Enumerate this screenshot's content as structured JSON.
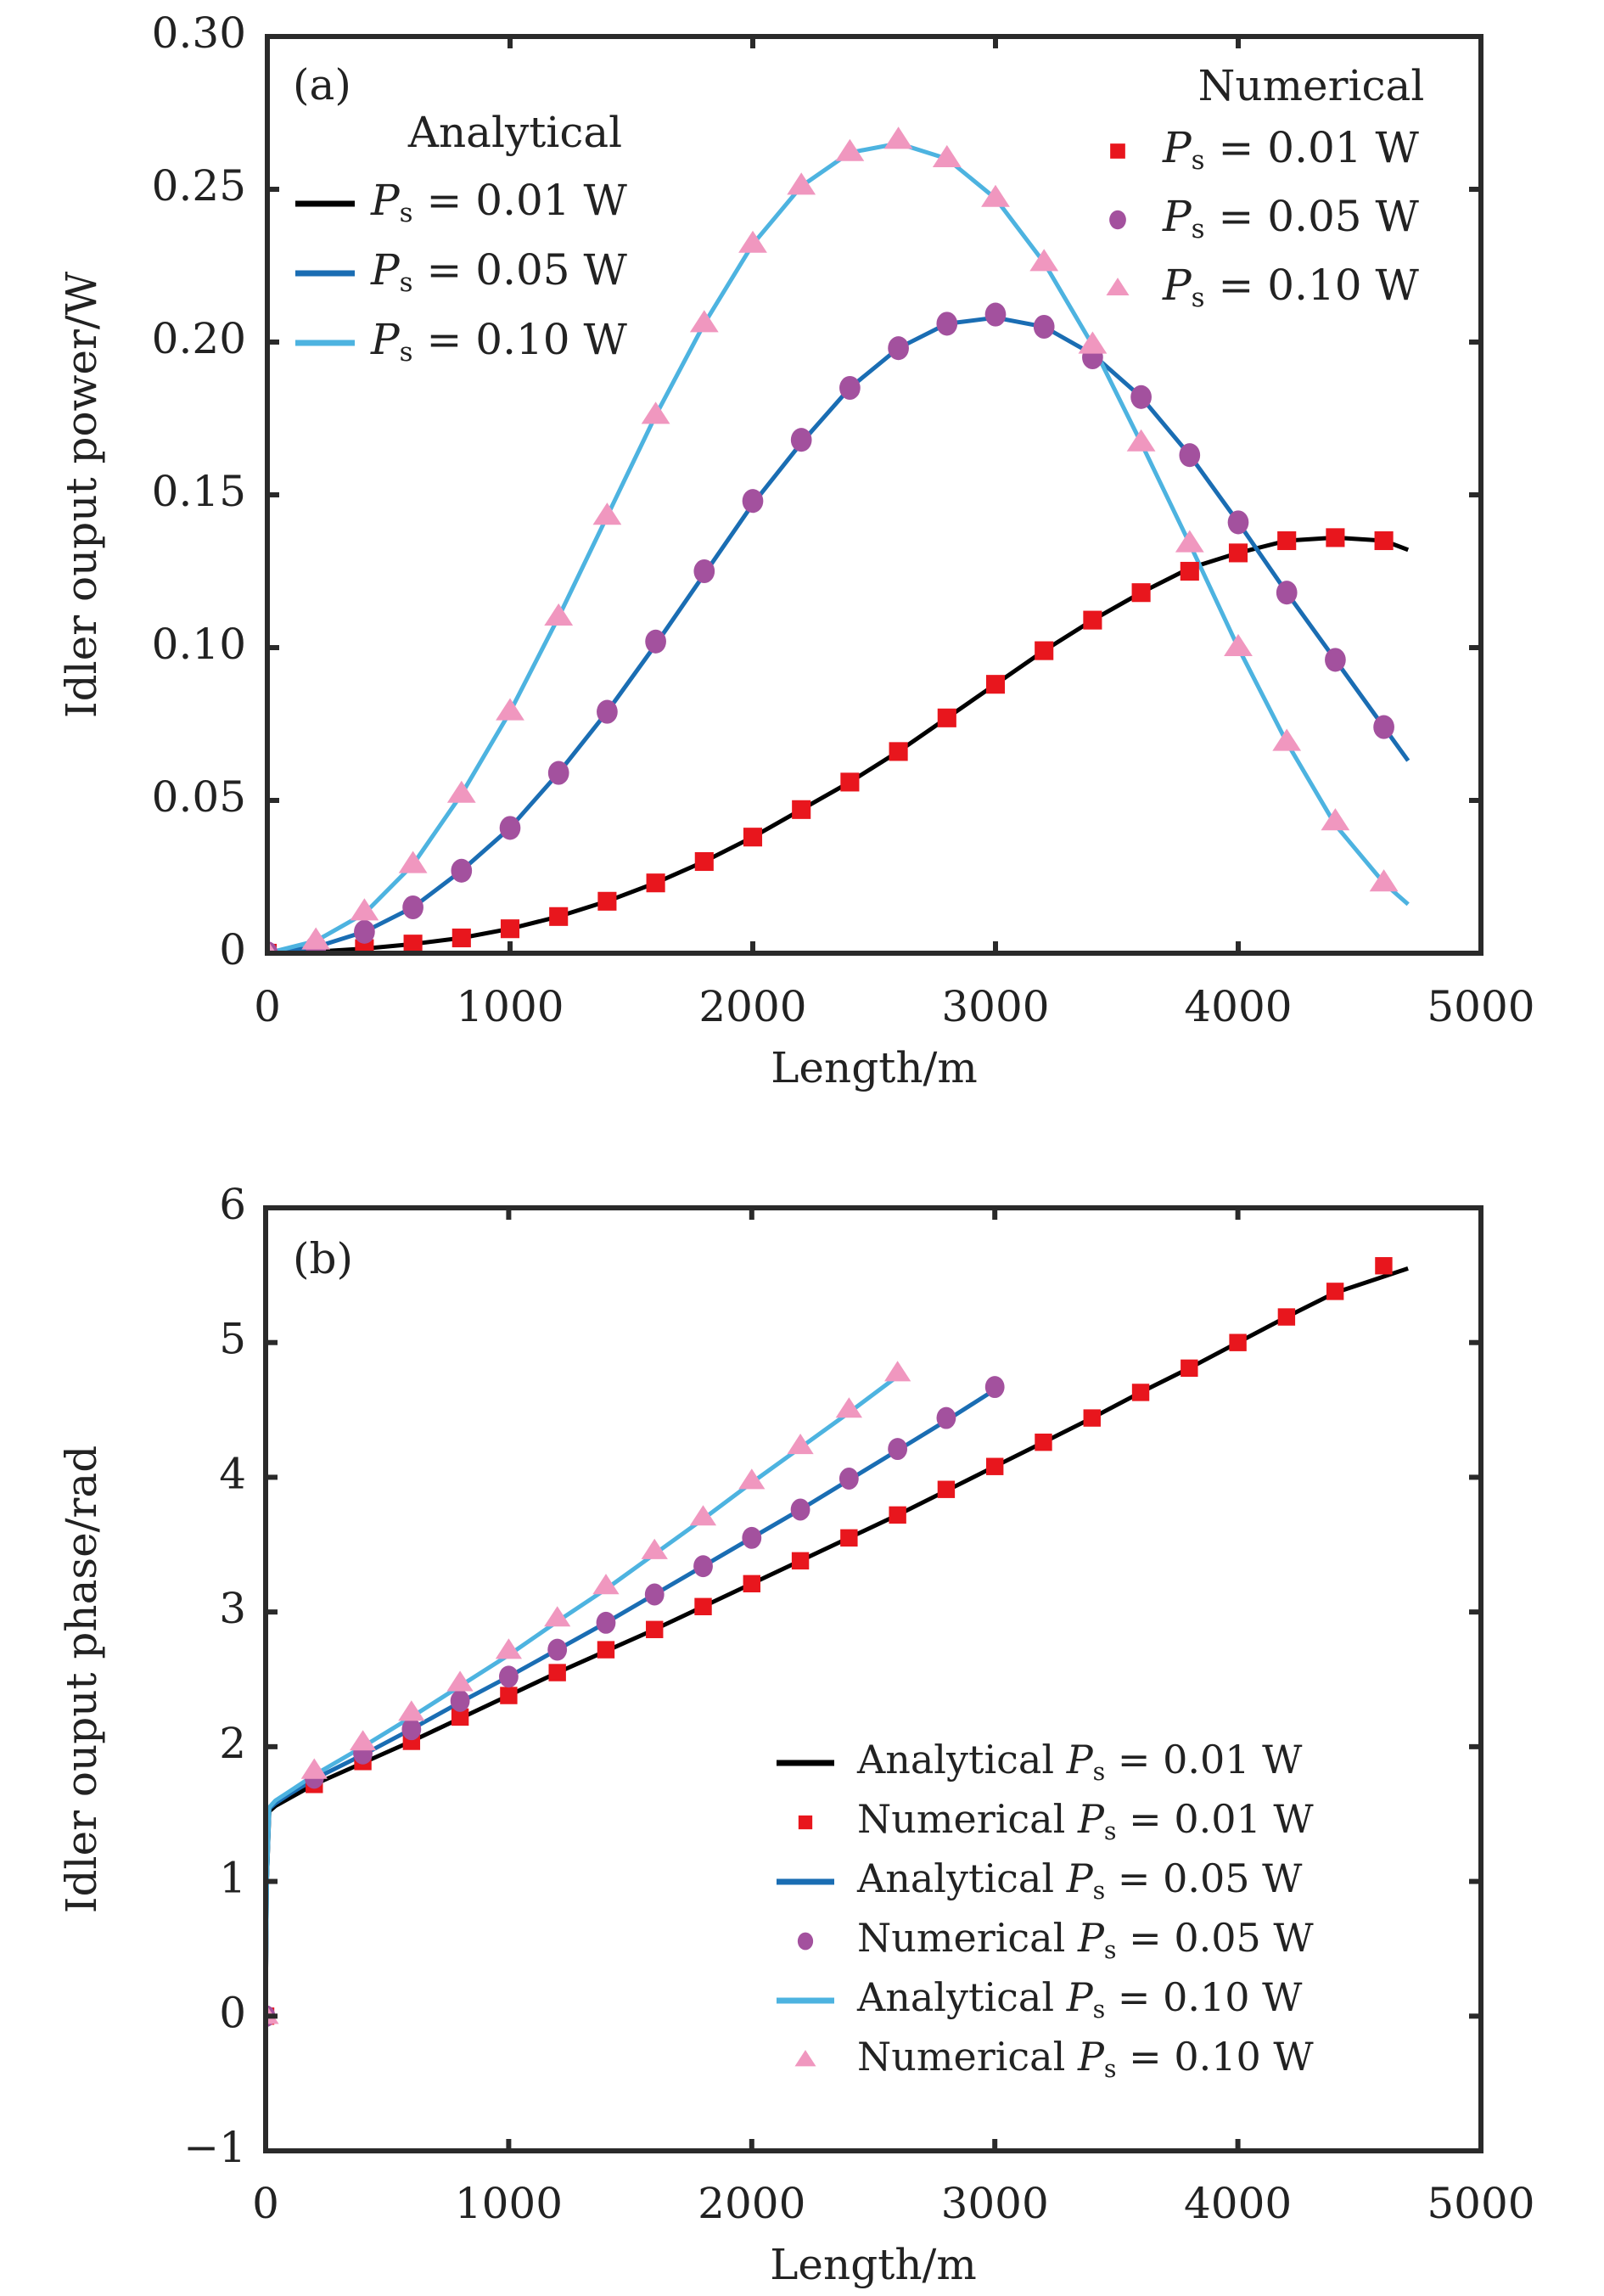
{
  "chart_data": [
    {
      "id": "a",
      "type": "line",
      "panel_label": "(a)",
      "xlabel": "Length/m",
      "ylabel": "Idler ouput power/W",
      "xlim": [
        0,
        5000
      ],
      "ylim": [
        0,
        0.3
      ],
      "xticks": [
        0,
        1000,
        2000,
        3000,
        4000,
        5000
      ],
      "xtick_labels": [
        "0",
        "1000",
        "2000",
        "3000",
        "4000",
        "5000"
      ],
      "yticks": [
        0,
        0.05,
        0.1,
        0.15,
        0.2,
        0.25,
        0.3
      ],
      "ytick_labels": [
        "0",
        "0.05",
        "0.10",
        "0.15",
        "0.20",
        "0.25",
        "0.30"
      ],
      "grid": false,
      "legends": [
        {
          "title": "Analytical",
          "placement": "top-left",
          "entries": [
            {
              "kind": "line",
              "series": "analytical_0.01",
              "prefix": "",
              "symbol": "P",
              "subscript": "s",
              "suffix": " = 0.01 W"
            },
            {
              "kind": "line",
              "series": "analytical_0.05",
              "prefix": "",
              "symbol": "P",
              "subscript": "s",
              "suffix": " = 0.05 W"
            },
            {
              "kind": "line",
              "series": "analytical_0.10",
              "prefix": "",
              "symbol": "P",
              "subscript": "s",
              "suffix": " = 0.10 W"
            }
          ]
        },
        {
          "title": "Numerical",
          "placement": "top-right",
          "entries": [
            {
              "kind": "square",
              "series": "numerical_0.01",
              "prefix": "",
              "symbol": "P",
              "subscript": "s",
              "suffix": " = 0.01 W"
            },
            {
              "kind": "circle",
              "series": "numerical_0.05",
              "prefix": "",
              "symbol": "P",
              "subscript": "s",
              "suffix": " = 0.05 W"
            },
            {
              "kind": "triangle",
              "series": "numerical_0.10",
              "prefix": "",
              "symbol": "P",
              "subscript": "s",
              "suffix": " = 0.10 W"
            }
          ]
        }
      ],
      "series": [
        {
          "name": "Analytical Ps = 0.01 W",
          "key": "analytical_0.01",
          "kind": "line",
          "color": "#000000",
          "x": [
            0,
            200,
            400,
            600,
            800,
            1000,
            1200,
            1400,
            1600,
            1800,
            2000,
            2200,
            2400,
            2600,
            2800,
            3000,
            3200,
            3400,
            3600,
            3800,
            4000,
            4200,
            4400,
            4600,
            4700
          ],
          "y": [
            0,
            0.0005,
            0.0015,
            0.003,
            0.005,
            0.008,
            0.012,
            0.017,
            0.023,
            0.03,
            0.038,
            0.047,
            0.056,
            0.066,
            0.077,
            0.088,
            0.099,
            0.109,
            0.118,
            0.126,
            0.131,
            0.135,
            0.136,
            0.135,
            0.132
          ]
        },
        {
          "name": "Analytical Ps = 0.05 W",
          "key": "analytical_0.05",
          "kind": "line",
          "color": "#1a6db3",
          "x": [
            0,
            200,
            400,
            600,
            800,
            1000,
            1200,
            1400,
            1600,
            1800,
            2000,
            2200,
            2400,
            2600,
            2800,
            3000,
            3200,
            3400,
            3600,
            3800,
            4000,
            4200,
            4400,
            4600,
            4700
          ],
          "y": [
            0,
            0.002,
            0.007,
            0.015,
            0.027,
            0.041,
            0.059,
            0.079,
            0.101,
            0.124,
            0.147,
            0.167,
            0.185,
            0.198,
            0.206,
            0.208,
            0.205,
            0.196,
            0.182,
            0.163,
            0.141,
            0.118,
            0.096,
            0.074,
            0.063
          ]
        },
        {
          "name": "Analytical Ps = 0.10 W",
          "key": "analytical_0.10",
          "kind": "line",
          "color": "#4db3e0",
          "x": [
            0,
            200,
            400,
            600,
            800,
            1000,
            1200,
            1400,
            1600,
            1800,
            2000,
            2200,
            2400,
            2600,
            2800,
            3000,
            3200,
            3400,
            3600,
            3800,
            4000,
            4200,
            4400,
            4600,
            4700
          ],
          "y": [
            0,
            0.004,
            0.013,
            0.029,
            0.052,
            0.079,
            0.11,
            0.143,
            0.176,
            0.206,
            0.232,
            0.251,
            0.262,
            0.265,
            0.26,
            0.247,
            0.226,
            0.199,
            0.167,
            0.134,
            0.1,
            0.069,
            0.042,
            0.023,
            0.016
          ]
        },
        {
          "name": "Numerical Ps = 0.01 W",
          "key": "numerical_0.01",
          "kind": "square",
          "color": "#e8161d",
          "x": [
            0,
            200,
            400,
            600,
            800,
            1000,
            1200,
            1400,
            1600,
            1800,
            2000,
            2200,
            2400,
            2600,
            2800,
            3000,
            3200,
            3400,
            3600,
            3800,
            4000,
            4200,
            4400,
            4600
          ],
          "y": [
            0,
            0.0005,
            0.0015,
            0.003,
            0.005,
            0.008,
            0.012,
            0.017,
            0.023,
            0.03,
            0.038,
            0.047,
            0.056,
            0.066,
            0.077,
            0.088,
            0.099,
            0.109,
            0.118,
            0.125,
            0.131,
            0.135,
            0.136,
            0.135
          ]
        },
        {
          "name": "Numerical Ps = 0.05 W",
          "key": "numerical_0.05",
          "kind": "circle",
          "color": "#a3519e",
          "x": [
            0,
            200,
            400,
            600,
            800,
            1000,
            1200,
            1400,
            1600,
            1800,
            2000,
            2200,
            2400,
            2600,
            2800,
            3000,
            3200,
            3400,
            3600,
            3800,
            4000,
            4200,
            4400,
            4600
          ],
          "y": [
            0,
            0.002,
            0.007,
            0.015,
            0.027,
            0.041,
            0.059,
            0.079,
            0.102,
            0.125,
            0.148,
            0.168,
            0.185,
            0.198,
            0.206,
            0.209,
            0.205,
            0.195,
            0.182,
            0.163,
            0.141,
            0.118,
            0.096,
            0.074
          ]
        },
        {
          "name": "Numerical Ps = 0.10 W",
          "key": "numerical_0.10",
          "kind": "triangle",
          "color": "#f097bf",
          "x": [
            0,
            200,
            400,
            600,
            800,
            1000,
            1200,
            1400,
            1600,
            1800,
            2000,
            2200,
            2400,
            2600,
            2800,
            3000,
            3200,
            3400,
            3600,
            3800,
            4000,
            4200,
            4400,
            4600
          ],
          "y": [
            0,
            0.004,
            0.0135,
            0.029,
            0.052,
            0.079,
            0.11,
            0.143,
            0.176,
            0.206,
            0.232,
            0.251,
            0.262,
            0.266,
            0.26,
            0.247,
            0.226,
            0.199,
            0.167,
            0.134,
            0.1,
            0.069,
            0.043,
            0.023
          ]
        }
      ]
    },
    {
      "id": "b",
      "type": "line",
      "panel_label": "(b)",
      "xlabel": "Length/m",
      "ylabel": "Idler ouput phase/rad",
      "xlim": [
        0,
        5000
      ],
      "ylim": [
        -1,
        6
      ],
      "xticks": [
        0,
        1000,
        2000,
        3000,
        4000,
        5000
      ],
      "xtick_labels": [
        "0",
        "1000",
        "2000",
        "3000",
        "4000",
        "5000"
      ],
      "yticks": [
        -1,
        0,
        1,
        2,
        3,
        4,
        5,
        6
      ],
      "ytick_labels": [
        "−1",
        "0",
        "1",
        "2",
        "3",
        "4",
        "5",
        "6"
      ],
      "grid": false,
      "legends": [
        {
          "title": "",
          "placement": "bottom-right",
          "entries": [
            {
              "kind": "line",
              "series": "analytical_0.01",
              "prefix": "Analytical ",
              "symbol": "P",
              "subscript": "s",
              "suffix": " = 0.01 W"
            },
            {
              "kind": "square",
              "series": "numerical_0.01",
              "prefix": "Numerical ",
              "symbol": "P",
              "subscript": "s",
              "suffix": " = 0.01 W"
            },
            {
              "kind": "line",
              "series": "analytical_0.05",
              "prefix": "Analytical ",
              "symbol": "P",
              "subscript": "s",
              "suffix": " = 0.05 W"
            },
            {
              "kind": "circle",
              "series": "numerical_0.05",
              "prefix": "Numerical ",
              "symbol": "P",
              "subscript": "s",
              "suffix": " = 0.05 W"
            },
            {
              "kind": "line",
              "series": "analytical_0.10",
              "prefix": "Analytical ",
              "symbol": "P",
              "subscript": "s",
              "suffix": " = 0.10 W"
            },
            {
              "kind": "triangle",
              "series": "numerical_0.10",
              "prefix": "Numerical ",
              "symbol": "P",
              "subscript": "s",
              "suffix": " = 0.10 W"
            }
          ]
        }
      ],
      "series": [
        {
          "name": "Analytical Ps = 0.01 W",
          "key": "analytical_0.01",
          "kind": "line",
          "color": "#000000",
          "x": [
            0,
            5,
            15,
            40,
            100,
            200,
            400,
            600,
            800,
            1000,
            1200,
            1400,
            1600,
            1800,
            2000,
            2200,
            2400,
            2600,
            2800,
            3000,
            3200,
            3400,
            3600,
            3800,
            4000,
            4200,
            4400,
            4550,
            4700
          ],
          "y": [
            0,
            1.0,
            1.52,
            1.56,
            1.62,
            1.72,
            1.88,
            2.04,
            2.21,
            2.38,
            2.55,
            2.71,
            2.87,
            3.04,
            3.21,
            3.38,
            3.55,
            3.72,
            3.9,
            4.08,
            4.26,
            4.44,
            4.63,
            4.81,
            5.0,
            5.19,
            5.37,
            5.46,
            5.55
          ]
        },
        {
          "name": "Analytical Ps = 0.05 W",
          "key": "analytical_0.05",
          "kind": "line",
          "color": "#1a6db3",
          "x": [
            0,
            5,
            15,
            40,
            100,
            200,
            400,
            600,
            800,
            1000,
            1200,
            1400,
            1600,
            1800,
            2000,
            2200,
            2400,
            2600,
            2800,
            3000
          ],
          "y": [
            0,
            1.0,
            1.54,
            1.58,
            1.65,
            1.76,
            1.94,
            2.13,
            2.33,
            2.52,
            2.72,
            2.92,
            3.13,
            3.34,
            3.55,
            3.76,
            3.98,
            4.2,
            4.42,
            4.65
          ]
        },
        {
          "name": "Analytical Ps = 0.10 W",
          "key": "analytical_0.10",
          "kind": "line",
          "color": "#4db3e0",
          "x": [
            0,
            5,
            15,
            40,
            100,
            200,
            400,
            600,
            800,
            1000,
            1200,
            1400,
            1600,
            1800,
            2000,
            2200,
            2400,
            2600
          ],
          "y": [
            0,
            1.0,
            1.55,
            1.6,
            1.67,
            1.79,
            2.0,
            2.22,
            2.45,
            2.68,
            2.93,
            3.17,
            3.43,
            3.69,
            3.96,
            4.22,
            4.48,
            4.75
          ]
        },
        {
          "name": "Numerical Ps = 0.01 W",
          "key": "numerical_0.01",
          "kind": "square",
          "color": "#e8161d",
          "x": [
            0,
            200,
            400,
            600,
            800,
            1000,
            1200,
            1400,
            1600,
            1800,
            2000,
            2200,
            2400,
            2600,
            2800,
            3000,
            3200,
            3400,
            3600,
            3800,
            4000,
            4200,
            4400,
            4600
          ],
          "y": [
            0,
            1.72,
            1.89,
            2.04,
            2.22,
            2.38,
            2.55,
            2.72,
            2.87,
            3.04,
            3.21,
            3.38,
            3.55,
            3.72,
            3.91,
            4.08,
            4.26,
            4.44,
            4.63,
            4.81,
            5.0,
            5.19,
            5.38,
            5.57
          ]
        },
        {
          "name": "Numerical Ps = 0.05 W",
          "key": "numerical_0.05",
          "kind": "circle",
          "color": "#a3519e",
          "x": [
            0,
            200,
            400,
            600,
            800,
            1000,
            1200,
            1400,
            1600,
            1800,
            2000,
            2200,
            2400,
            2600,
            2800,
            3000
          ],
          "y": [
            0,
            1.77,
            1.95,
            2.13,
            2.34,
            2.52,
            2.72,
            2.92,
            3.13,
            3.34,
            3.55,
            3.76,
            3.99,
            4.21,
            4.44,
            4.67
          ]
        },
        {
          "name": "Numerical Ps = 0.10 W",
          "key": "numerical_0.10",
          "kind": "triangle",
          "color": "#f097bf",
          "x": [
            0,
            200,
            400,
            600,
            800,
            1000,
            1200,
            1400,
            1600,
            1800,
            2000,
            2200,
            2400,
            2600
          ],
          "y": [
            0,
            1.82,
            2.03,
            2.25,
            2.47,
            2.71,
            2.95,
            3.19,
            3.45,
            3.7,
            3.97,
            4.23,
            4.5,
            4.77
          ]
        }
      ]
    }
  ]
}
